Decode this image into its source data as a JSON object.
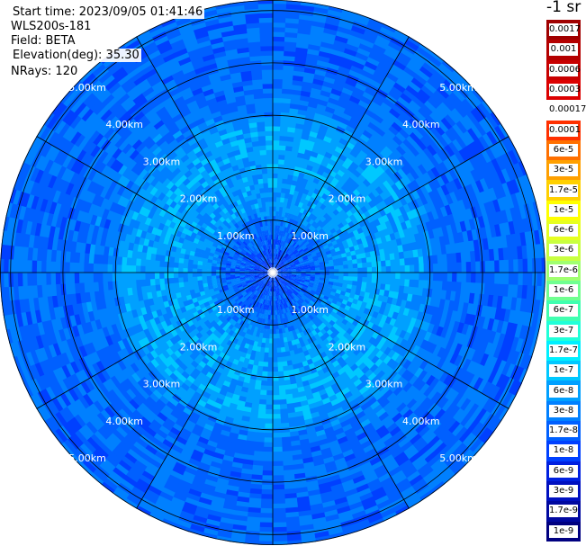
{
  "header": {
    "start_time": "Start time: 2023/09/05 01:41:46",
    "instrument": "WLS200s-181",
    "field": "Field: BETA",
    "elevation": "Elevation(deg): 35.30",
    "nrays": "NRays: 120"
  },
  "chart_data": {
    "type": "heatmap",
    "projection": "polar (PPI)",
    "field": "BETA",
    "unit": "-1 sr",
    "n_rays": 120,
    "elevation_deg": 35.3,
    "range_rings_km": [
      1,
      2,
      3,
      4,
      5
    ],
    "range_ring_labels": [
      "1.00km",
      "2.00km",
      "3.00km",
      "4.00km",
      "5.00km"
    ],
    "max_range_km": 5.2,
    "spokes_deg": [
      0,
      30,
      60,
      90,
      120,
      150,
      180,
      210,
      240,
      270,
      300,
      330
    ],
    "radial_profile": [
      {
        "range_km": 0.0,
        "value": 1e-08
      },
      {
        "range_km": 0.5,
        "value": 1.5e-08
      },
      {
        "range_km": 1.0,
        "value": 2.5e-08
      },
      {
        "range_km": 1.3,
        "value": 5e-08
      },
      {
        "range_km": 2.0,
        "value": 6e-08
      },
      {
        "range_km": 2.8,
        "value": 5.5e-08
      },
      {
        "range_km": 3.2,
        "value": 2.5e-08
      },
      {
        "range_km": 4.0,
        "value": 2e-08
      },
      {
        "range_km": 5.0,
        "value": 2e-08
      }
    ],
    "colorbar": {
      "title": "-1 sr",
      "labels": [
        "0.0017",
        "0.001",
        "0.0006",
        "0.0003",
        "0.00017",
        "0.0001",
        "6e-5",
        "3e-5",
        "1.7e-5",
        "1e-5",
        "6e-6",
        "3e-6",
        "1.7e-6",
        "1e-6",
        "6e-7",
        "3e-7",
        "1.7e-7",
        "1e-7",
        "6e-8",
        "3e-8",
        "1.7e-8",
        "1e-8",
        "6e-9",
        "3e-9",
        "1.7e-9",
        "1e-9"
      ],
      "colors": [
        "#a00000",
        "#b40000",
        "#c80000",
        "#dc0000",
        "#ffffff",
        "#ff3000",
        "#ff7000",
        "#ffa000",
        "#ffd000",
        "#ffff00",
        "#e6ff20",
        "#c8ff40",
        "#a0ff70",
        "#70ff90",
        "#40ffb0",
        "#20ffd8",
        "#00f0ff",
        "#00c8ff",
        "#00a0ff",
        "#0080ff",
        "#0060ff",
        "#0040ff",
        "#0020e0",
        "#0010c0",
        "#0008a0",
        "#000080"
      ]
    }
  }
}
